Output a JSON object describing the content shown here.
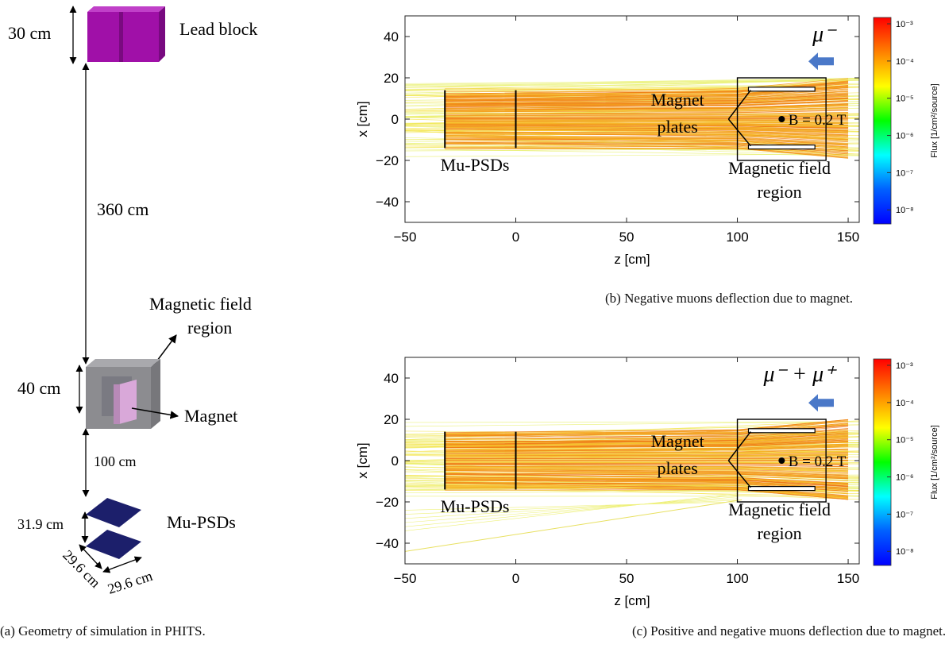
{
  "panel_a": {
    "caption": "(a) Geometry of simulation in PHITS.",
    "labels": {
      "lead_height": "30 cm",
      "lead_block": "Lead block",
      "gap_lead_magnet": "360 cm",
      "field_region_line1": "Magnetic field",
      "field_region_line2": "region",
      "magnet_height": "40 cm",
      "magnet": "Magnet",
      "gap_magnet_psd": "100 cm",
      "psd_gap": "31.9 cm",
      "psds": "Mu-PSDs",
      "psd_width_1": "29.6 cm",
      "psd_width_2": "29.6 cm"
    },
    "colors": {
      "lead": "#a010a8",
      "magnet_box": "#8c8c90",
      "magnet": "#d9a8d9",
      "psd": "#1c1f6b"
    }
  },
  "panel_b": {
    "caption": "(b) Negative muons deflection due to magnet.",
    "particle_label": "μ⁻",
    "annotations": {
      "magnet_plates_1": "Magnet",
      "magnet_plates_2": "plates",
      "field_value": "B = 0.2 T",
      "psds": "Mu-PSDs",
      "field_region_1": "Magnetic field",
      "field_region_2": "region"
    }
  },
  "panel_c": {
    "caption": "(c) Positive and negative muons deflection due to magnet.",
    "particle_label": "μ⁻ + μ⁺",
    "annotations": {
      "magnet_plates_1": "Magnet",
      "magnet_plates_2": "plates",
      "field_value": "B = 0.2 T",
      "psds": "Mu-PSDs",
      "field_region_1": "Magnetic field",
      "field_region_2": "region"
    }
  },
  "chart_data": [
    {
      "type": "heatmap",
      "xlabel": "z [cm]",
      "ylabel": "x [cm]",
      "xlim": [
        -50,
        155
      ],
      "ylim": [
        -50,
        50
      ],
      "x_ticks": [
        "−50",
        "0",
        "50",
        "100",
        "150"
      ],
      "x_tick_values": [
        -50,
        0,
        50,
        100,
        150
      ],
      "y_ticks": [
        "40",
        "20",
        "0",
        "−20",
        "−40"
      ],
      "y_tick_values": [
        40,
        20,
        0,
        -20,
        -40
      ],
      "colorbar": {
        "label": "Flux [1/cm²/source]",
        "ticks": [
          "10⁻³",
          "10⁻⁴",
          "10⁻⁵",
          "10⁻⁶",
          "10⁻⁷",
          "10⁻⁸"
        ],
        "colors": [
          "#ff0000",
          "#ff8000",
          "#ffff00",
          "#00ff00",
          "#00ffff",
          "#0060ff",
          "#0000ff"
        ]
      },
      "detectors_z": [
        -32,
        0
      ],
      "detector_x_range": [
        -14,
        14
      ],
      "field_region": {
        "z": [
          100,
          140
        ],
        "x": [
          -20,
          20
        ]
      },
      "magnet_plates": [
        {
          "z": [
            105,
            135
          ],
          "x": 14.5
        },
        {
          "z": [
            105,
            135
          ],
          "x": -13.5
        }
      ],
      "field_point": {
        "z": 120,
        "x": 0
      }
    },
    {
      "type": "heatmap",
      "xlabel": "z [cm]",
      "ylabel": "x [cm]",
      "xlim": [
        -50,
        155
      ],
      "ylim": [
        -50,
        50
      ],
      "x_ticks": [
        "−50",
        "0",
        "50",
        "100",
        "150"
      ],
      "x_tick_values": [
        -50,
        0,
        50,
        100,
        150
      ],
      "y_ticks": [
        "40",
        "20",
        "0",
        "−20",
        "−40"
      ],
      "y_tick_values": [
        40,
        20,
        0,
        -20,
        -40
      ],
      "colorbar": {
        "label": "Flux [1/cm²/source]",
        "ticks": [
          "10⁻³",
          "10⁻⁴",
          "10⁻⁵",
          "10⁻⁶",
          "10⁻⁷",
          "10⁻⁸"
        ],
        "colors": [
          "#ff0000",
          "#ff8000",
          "#ffff00",
          "#00ff00",
          "#00ffff",
          "#0060ff",
          "#0000ff"
        ]
      },
      "detectors_z": [
        -32,
        0
      ],
      "detector_x_range": [
        -14,
        14
      ],
      "field_region": {
        "z": [
          100,
          140
        ],
        "x": [
          -20,
          20
        ]
      },
      "magnet_plates": [
        {
          "z": [
            105,
            135
          ],
          "x": 14.5
        },
        {
          "z": [
            105,
            135
          ],
          "x": -13.5
        }
      ],
      "field_point": {
        "z": 120,
        "x": 0
      }
    }
  ]
}
